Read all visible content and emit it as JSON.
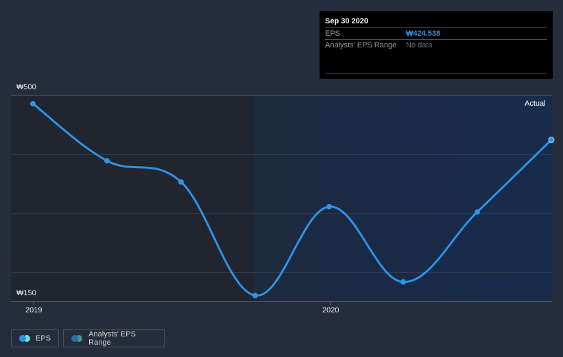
{
  "chart_data": {
    "type": "line",
    "title": "",
    "xlabel": "",
    "ylabel": "",
    "x": [
      "Dec 2018",
      "Mar 2019",
      "Jun 2019",
      "Sep 2019",
      "Dec 2019",
      "Mar 2020",
      "Jun 2020",
      "Sep 2020"
    ],
    "series": [
      {
        "name": "EPS",
        "values": [
          486,
          389,
          353,
          160,
          311,
          183,
          302,
          424.538
        ],
        "color": "#2e93e6"
      },
      {
        "name": "Analysts' EPS Range",
        "values": [],
        "color": "#3a7fa8"
      }
    ],
    "ylim": [
      150,
      500
    ],
    "y_ticks": [
      "₩500",
      "₩150"
    ],
    "x_ticks": [
      "2019",
      "2020"
    ],
    "grid": true,
    "legend_position": "bottom-left",
    "annotations": [
      "Actual"
    ]
  },
  "axis": {
    "y_top_label": "₩500",
    "y_bottom_label": "₩150",
    "x_labels": [
      "2019",
      "2020"
    ]
  },
  "tooltip": {
    "title": "Sep 30 2020",
    "rows": [
      {
        "label": "EPS",
        "value": "₩424.538"
      },
      {
        "label": "Analysts' EPS Range",
        "value": "No data"
      }
    ]
  },
  "region_label": "Actual",
  "legend": {
    "items": [
      {
        "label": "EPS",
        "colors": [
          "#2e93e6",
          "#6fe0e0"
        ]
      },
      {
        "label": "Analysts' EPS Range",
        "colors": [
          "#2a6fa8",
          "#4f8e8e"
        ]
      }
    ]
  },
  "colors": {
    "background": "#262d3a",
    "actual_band": "#1a2b47",
    "past_band": "#20252f",
    "line": "#2e93e6",
    "grid": "#3a4150"
  }
}
